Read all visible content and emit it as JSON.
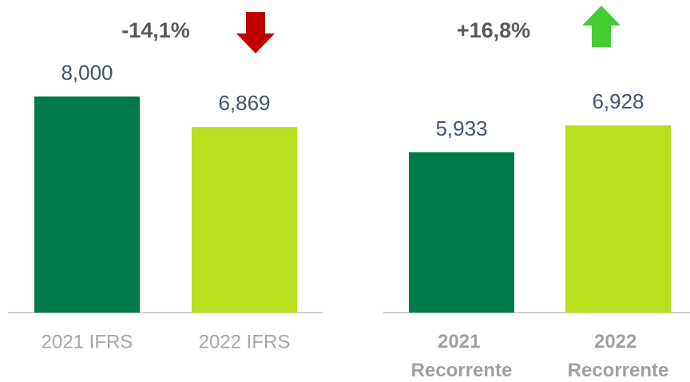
{
  "chart_data": [
    {
      "type": "bar",
      "annotation": "-14,1%",
      "trend": "down",
      "trend_color": "#c00000",
      "categories": [
        "2021 IFRS",
        "2022 IFRS"
      ],
      "values": [
        8000,
        6869
      ],
      "value_labels": [
        "8,000",
        "6,869"
      ],
      "colors": [
        "#007a4a",
        "#b9de1e"
      ],
      "bold_categories": false
    },
    {
      "type": "bar",
      "annotation": "+16,8%",
      "trend": "up",
      "trend_color": "#44cc33",
      "categories": [
        "2021 Recorrente",
        "2022 Recorrente"
      ],
      "values": [
        5933,
        6928
      ],
      "value_labels": [
        "5,933",
        "6,928"
      ],
      "colors": [
        "#007a4a",
        "#b9de1e"
      ],
      "bold_categories": true
    }
  ]
}
